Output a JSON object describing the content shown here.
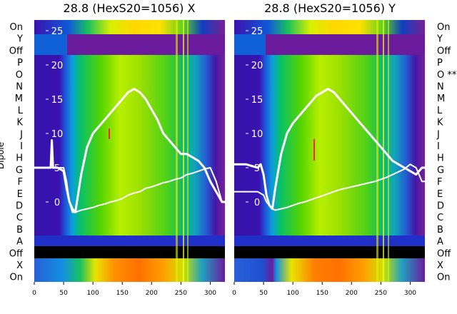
{
  "chart_data": [
    {
      "type": "heatmap",
      "title": "28.8 (HexS20=1056) X",
      "ylabel": "Dipole",
      "row_labels": [
        "On",
        "Y",
        "Off",
        "P",
        "O",
        "N",
        "M",
        "L",
        "K",
        "J",
        "I",
        "H",
        "G",
        "F",
        "E",
        "D",
        "C",
        "B",
        "A",
        "Off",
        "X",
        "On"
      ],
      "x_ticks": [
        0,
        50,
        100,
        150,
        200,
        250,
        300
      ],
      "xlim": [
        0,
        325
      ],
      "overlay_yticks": [
        25,
        20,
        15,
        10,
        5,
        0
      ],
      "overlay_ylim": [
        -3,
        26.5
      ],
      "overlay_series": [
        {
          "x": [
            0,
            20,
            28,
            30,
            32,
            40,
            50,
            55,
            60,
            65,
            70,
            80,
            90,
            100,
            110,
            120,
            130,
            140,
            150,
            160,
            170,
            180,
            190,
            200,
            210,
            220,
            230,
            240,
            250,
            260,
            270,
            280,
            290,
            300,
            310,
            320,
            325
          ],
          "y": [
            5,
            5,
            5,
            9,
            5,
            5,
            4.5,
            2,
            0,
            -1,
            -1.5,
            4,
            8,
            10,
            11,
            12,
            13,
            14,
            15,
            16,
            16.5,
            16,
            15,
            13.5,
            12,
            10,
            9,
            8,
            7,
            7,
            6.5,
            6,
            5,
            3,
            1.5,
            0,
            0
          ]
        },
        {
          "x": [
            0,
            20,
            40,
            50,
            55,
            60,
            65,
            70,
            80,
            90,
            100,
            110,
            120,
            130,
            140,
            150,
            160,
            170,
            180,
            190,
            200,
            210,
            220,
            230,
            240,
            250,
            260,
            270,
            280,
            290,
            300,
            310,
            320,
            325
          ],
          "y": [
            5,
            5,
            5,
            5,
            3,
            0,
            -1.5,
            -1.5,
            -1.2,
            -1,
            -0.8,
            -0.5,
            -0.3,
            0,
            0.2,
            0.5,
            1,
            1.3,
            1.5,
            2,
            2.2,
            2.5,
            2.8,
            3,
            3.3,
            3.5,
            4,
            4.2,
            4.5,
            4.8,
            5,
            3,
            0,
            0
          ]
        }
      ]
    },
    {
      "type": "heatmap",
      "title": "28.8 (HexS20=1056) Y",
      "ylabel": "",
      "row_labels": [
        "On",
        "Y",
        "Off",
        "P",
        "O **",
        "N",
        "M",
        "L",
        "K",
        "J",
        "I",
        "H",
        "G",
        "F",
        "E",
        "D",
        "C",
        "B",
        "A",
        "Off",
        "X",
        "On"
      ],
      "x_ticks": [
        0,
        50,
        100,
        150,
        200,
        250,
        300
      ],
      "xlim": [
        0,
        325
      ],
      "overlay_yticks": [
        25,
        20,
        15,
        10,
        5,
        0
      ],
      "overlay_ylim": [
        -3,
        26.5
      ],
      "overlay_series": [
        {
          "x": [
            0,
            20,
            40,
            45,
            50,
            55,
            60,
            65,
            70,
            80,
            90,
            100,
            110,
            120,
            130,
            140,
            150,
            160,
            170,
            180,
            190,
            200,
            210,
            220,
            230,
            240,
            250,
            260,
            270,
            280,
            290,
            300,
            310,
            320,
            325
          ],
          "y": [
            5.5,
            5.5,
            5,
            5.5,
            4,
            1,
            -0.5,
            -1,
            2,
            7,
            10,
            11.5,
            12.5,
            13.5,
            14.5,
            15.5,
            16,
            16.5,
            16,
            15,
            14,
            13,
            12,
            11,
            10,
            9,
            8,
            7,
            6,
            5.5,
            5,
            4.5,
            4,
            5,
            5
          ]
        },
        {
          "x": [
            0,
            20,
            40,
            50,
            55,
            60,
            65,
            70,
            80,
            90,
            100,
            110,
            120,
            130,
            140,
            150,
            160,
            170,
            180,
            190,
            200,
            210,
            220,
            230,
            240,
            250,
            260,
            270,
            280,
            290,
            300,
            310,
            320,
            325
          ],
          "y": [
            1.5,
            1.5,
            1.5,
            1,
            0,
            -0.5,
            -1,
            -1.2,
            -1,
            -0.8,
            -0.5,
            -0.2,
            0,
            0.3,
            0.6,
            0.9,
            1.2,
            1.5,
            1.8,
            2,
            2.2,
            2.4,
            2.6,
            2.8,
            3,
            3.3,
            3.6,
            4,
            4.4,
            4.8,
            5.5,
            5,
            3,
            3
          ]
        }
      ]
    }
  ]
}
